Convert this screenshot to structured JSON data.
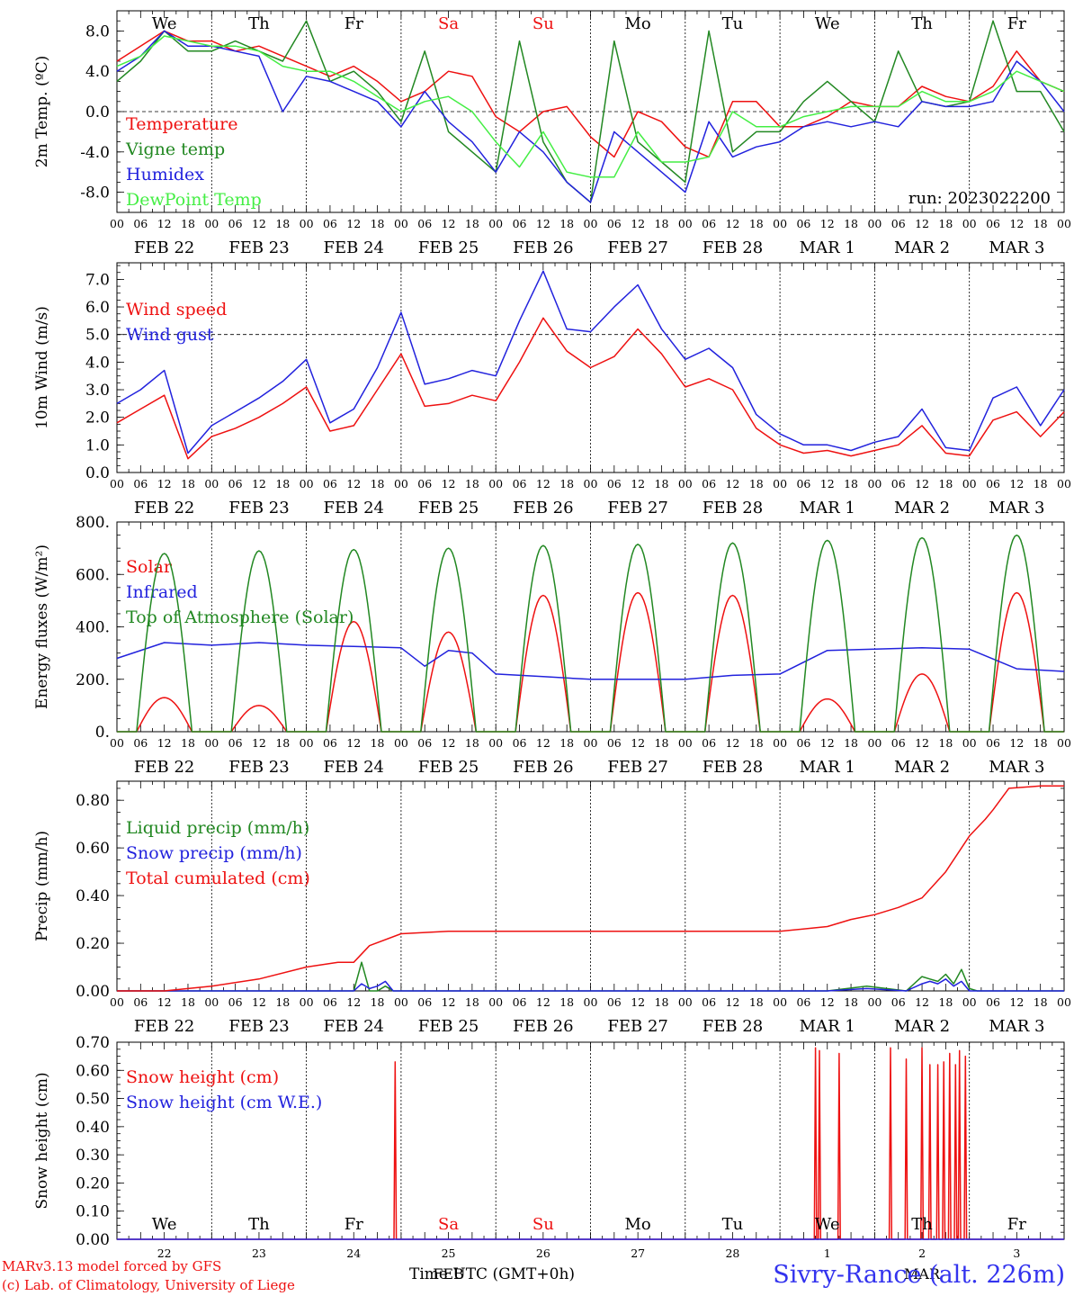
{
  "day_names": [
    "We",
    "Th",
    "Fr",
    "Sa",
    "Su",
    "Mo",
    "Tu",
    "We",
    "Th",
    "Fr"
  ],
  "weekend_color": "#ee1111",
  "date_labels": [
    "FEB 22",
    "FEB 23",
    "FEB 24",
    "FEB 25",
    "FEB 26",
    "FEB 27",
    "FEB 28",
    "MAR  1",
    "MAR  2",
    "MAR  3"
  ],
  "hour_ticks": [
    "00",
    "06",
    "12",
    "18"
  ],
  "last_hour_tick": "00",
  "chart_data": [
    {
      "type": "line",
      "ylabel": "2m Temp. (ºC)",
      "ylim": [
        -10,
        10
      ],
      "ytick_values": [
        8,
        4,
        0,
        -4,
        -8
      ],
      "ytick_labels": [
        "8.0",
        "4.0",
        "0.0",
        "-4.0",
        "-8.0"
      ],
      "ref_line": 0,
      "x_unit": "hours since FEB 22 00 UTC",
      "annotation": "run: 2023022200",
      "series": [
        {
          "name": "Temperature",
          "color": "#ee1111",
          "x": [
            0,
            6,
            12,
            18,
            24,
            30,
            36,
            42,
            48,
            54,
            60,
            66,
            72,
            78,
            84,
            90,
            96,
            102,
            108,
            114,
            120,
            126,
            132,
            138,
            144,
            150,
            156,
            162,
            168,
            174,
            180,
            186,
            192,
            198,
            204,
            210,
            216,
            222,
            228,
            234,
            240
          ],
          "y": [
            5,
            6.5,
            8,
            7,
            7,
            6,
            6.5,
            5.5,
            4.5,
            3.5,
            4.5,
            3,
            1,
            2,
            4,
            3.5,
            -0.5,
            -2,
            0,
            0.5,
            -2.5,
            -4.5,
            0,
            -1,
            -3.5,
            -4.5,
            1,
            1,
            -1.5,
            -1.5,
            -0.5,
            1,
            0.5,
            0.5,
            2.5,
            1.5,
            1,
            2.5,
            6,
            3,
            2
          ]
        },
        {
          "name": "Vigne temp",
          "color": "#228822",
          "x": [
            0,
            6,
            12,
            18,
            24,
            30,
            36,
            42,
            48,
            54,
            60,
            66,
            72,
            78,
            84,
            90,
            96,
            102,
            108,
            114,
            120,
            126,
            132,
            138,
            144,
            150,
            156,
            162,
            168,
            174,
            180,
            186,
            192,
            198,
            204,
            210,
            216,
            222,
            228,
            234,
            240
          ],
          "y": [
            3,
            5,
            8,
            6,
            6,
            7,
            6,
            5,
            9,
            3,
            4,
            2,
            -1,
            6,
            -2,
            -4,
            -6,
            7,
            -3,
            -7,
            -9,
            7,
            -3,
            -5,
            -7,
            8,
            -4,
            -2,
            -2,
            1,
            3,
            1,
            -1,
            6,
            1,
            0.5,
            1,
            9,
            2,
            2,
            -2
          ]
        },
        {
          "name": "Humidex",
          "color": "#2222dd",
          "x": [
            0,
            6,
            12,
            18,
            24,
            30,
            36,
            42,
            48,
            54,
            60,
            66,
            72,
            78,
            84,
            90,
            96,
            102,
            108,
            114,
            120,
            126,
            132,
            138,
            144,
            150,
            156,
            162,
            168,
            174,
            180,
            186,
            192,
            198,
            204,
            210,
            216,
            222,
            228,
            234,
            240
          ],
          "y": [
            4,
            5.5,
            8,
            6.5,
            6.5,
            6,
            5.5,
            0,
            3.5,
            3,
            2,
            1,
            -1.5,
            2,
            -1,
            -3,
            -6,
            -2,
            -4,
            -7,
            -9,
            -2,
            -4,
            -6,
            -8,
            -1,
            -4.5,
            -3.5,
            -3,
            -1.5,
            -1,
            -1.5,
            -1,
            -1.5,
            1,
            0.5,
            0.5,
            1,
            5,
            3,
            0
          ]
        },
        {
          "name": "DewPoint Temp",
          "color": "#44ee44",
          "x": [
            0,
            6,
            12,
            18,
            24,
            30,
            36,
            42,
            48,
            54,
            60,
            66,
            72,
            78,
            84,
            90,
            96,
            102,
            108,
            114,
            120,
            126,
            132,
            138,
            144,
            150,
            156,
            162,
            168,
            174,
            180,
            186,
            192,
            198,
            204,
            210,
            216,
            222,
            228,
            234,
            240
          ],
          "y": [
            4.5,
            5.5,
            7.5,
            7,
            6.5,
            6.5,
            6,
            4.5,
            4,
            4,
            3,
            1.5,
            0,
            1,
            1.5,
            0,
            -3,
            -5.5,
            -2,
            -6,
            -6.5,
            -6.5,
            -2,
            -5,
            -5,
            -4.5,
            0,
            -1.5,
            -1.5,
            -0.5,
            0,
            0.5,
            0.5,
            0.5,
            2,
            1,
            1,
            2,
            4,
            3,
            2
          ]
        }
      ]
    },
    {
      "type": "line",
      "ylabel": "10m Wind (m/s)",
      "ylim": [
        0,
        7.6
      ],
      "ytick_values": [
        7,
        6,
        5,
        4,
        3,
        2,
        1,
        0
      ],
      "ytick_labels": [
        "7.0",
        "6.0",
        "5.0",
        "4.0",
        "3.0",
        "2.0",
        "1.0",
        "0.0"
      ],
      "ref_line": 5,
      "x_unit": "hours since FEB 22 00 UTC",
      "series": [
        {
          "name": "Wind speed",
          "color": "#ee1111",
          "x": [
            0,
            6,
            12,
            18,
            24,
            30,
            36,
            42,
            48,
            54,
            60,
            66,
            72,
            78,
            84,
            90,
            96,
            102,
            108,
            114,
            120,
            126,
            132,
            138,
            144,
            150,
            156,
            162,
            168,
            174,
            180,
            186,
            192,
            198,
            204,
            210,
            216,
            222,
            228,
            234,
            240
          ],
          "y": [
            1.8,
            2.3,
            2.8,
            0.5,
            1.3,
            1.6,
            2,
            2.5,
            3.1,
            1.5,
            1.7,
            3,
            4.3,
            2.4,
            2.5,
            2.8,
            2.6,
            4,
            5.6,
            4.4,
            3.8,
            4.2,
            5.2,
            4.3,
            3.1,
            3.4,
            3,
            1.6,
            1,
            0.7,
            0.8,
            0.6,
            0.8,
            1,
            1.7,
            0.7,
            0.6,
            1.9,
            2.2,
            1.3,
            2.2
          ]
        },
        {
          "name": "Wind gust",
          "color": "#2222dd",
          "x": [
            0,
            6,
            12,
            18,
            24,
            30,
            36,
            42,
            48,
            54,
            60,
            66,
            72,
            78,
            84,
            90,
            96,
            102,
            108,
            114,
            120,
            126,
            132,
            138,
            144,
            150,
            156,
            162,
            168,
            174,
            180,
            186,
            192,
            198,
            204,
            210,
            216,
            222,
            228,
            234,
            240
          ],
          "y": [
            2.5,
            3,
            3.7,
            0.7,
            1.7,
            2.2,
            2.7,
            3.3,
            4.1,
            1.8,
            2.3,
            3.8,
            5.8,
            3.2,
            3.4,
            3.7,
            3.5,
            5.5,
            7.3,
            5.2,
            5.1,
            6,
            6.8,
            5.2,
            4.1,
            4.5,
            3.8,
            2.1,
            1.4,
            1,
            1,
            0.8,
            1.1,
            1.3,
            2.3,
            0.9,
            0.8,
            2.7,
            3.1,
            1.7,
            3
          ]
        }
      ]
    },
    {
      "type": "line",
      "ylabel": "Energy fluxes (W/m²)",
      "ylim": [
        0,
        800
      ],
      "ytick_values": [
        800,
        600,
        400,
        200,
        0
      ],
      "ytick_labels": [
        "800.",
        "600.",
        "400.",
        "200.",
        "0."
      ],
      "x_unit": "hours since FEB 22 00 UTC",
      "series": [
        {
          "name": "Solar",
          "color": "#ee1111",
          "x_unit": "day index",
          "noon_peaks": [
            130,
            100,
            420,
            380,
            520,
            530,
            520,
            125,
            220,
            530
          ]
        },
        {
          "name": "Infrared",
          "color": "#2222dd",
          "x": [
            0,
            12,
            24,
            36,
            48,
            60,
            72,
            78,
            84,
            90,
            96,
            108,
            120,
            132,
            144,
            156,
            168,
            180,
            192,
            204,
            216,
            228,
            240
          ],
          "y": [
            280,
            340,
            330,
            340,
            330,
            325,
            320,
            250,
            310,
            300,
            220,
            210,
            200,
            200,
            200,
            215,
            220,
            310,
            315,
            320,
            315,
            240,
            230
          ]
        },
        {
          "name": "Top of Atmosphere (Solar)",
          "color": "#228822",
          "x_unit": "day index",
          "noon_peaks": [
            680,
            690,
            695,
            700,
            710,
            715,
            720,
            730,
            740,
            750
          ]
        }
      ]
    },
    {
      "type": "line",
      "ylabel": "Precip (mm/h)",
      "ylim": [
        0,
        0.88
      ],
      "ytick_values": [
        0.8,
        0.6,
        0.4,
        0.2,
        0
      ],
      "ytick_labels": [
        "0.80",
        "0.60",
        "0.40",
        "0.20",
        "0.00"
      ],
      "x_unit": "hours since FEB 22 00 UTC",
      "series": [
        {
          "name": "Liquid precip (mm/h)",
          "color": "#228822",
          "x": [
            0,
            60,
            62,
            64,
            66,
            68,
            70,
            90,
            180,
            190,
            200,
            204,
            206,
            208,
            210,
            212,
            214,
            216,
            218,
            240
          ],
          "y": [
            0,
            0,
            0.12,
            0,
            0,
            0.02,
            0,
            0,
            0,
            0.02,
            0,
            0.06,
            0.05,
            0.04,
            0.07,
            0.03,
            0.09,
            0.01,
            0,
            0
          ]
        },
        {
          "name": "Snow precip (mm/h)",
          "color": "#2222dd",
          "x": [
            0,
            60,
            62,
            64,
            66,
            68,
            70,
            90,
            180,
            190,
            200,
            204,
            206,
            208,
            210,
            212,
            214,
            216,
            218,
            240
          ],
          "y": [
            0,
            0,
            0.03,
            0.01,
            0.02,
            0.04,
            0,
            0,
            0,
            0.01,
            0,
            0.03,
            0.04,
            0.03,
            0.05,
            0.02,
            0.04,
            0,
            0,
            0
          ]
        },
        {
          "name": "Total cumulated (cm)",
          "color": "#ee1111",
          "x": [
            0,
            12,
            24,
            36,
            48,
            56,
            60,
            64,
            72,
            84,
            96,
            120,
            144,
            168,
            180,
            186,
            192,
            198,
            204,
            210,
            216,
            220,
            222,
            226,
            234,
            240
          ],
          "y": [
            0,
            0,
            0.02,
            0.05,
            0.1,
            0.12,
            0.12,
            0.19,
            0.24,
            0.25,
            0.25,
            0.25,
            0.25,
            0.25,
            0.27,
            0.3,
            0.32,
            0.35,
            0.39,
            0.5,
            0.65,
            0.72,
            0.76,
            0.85,
            0.86,
            0.86
          ]
        }
      ]
    },
    {
      "type": "line",
      "ylabel": "Snow height (cm)",
      "ylim": [
        0,
        0.7
      ],
      "ytick_values": [
        0.7,
        0.6,
        0.5,
        0.4,
        0.3,
        0.2,
        0.1,
        0
      ],
      "ytick_labels": [
        "0.70",
        "0.60",
        "0.50",
        "0.40",
        "0.30",
        "0.20",
        "0.10",
        "0.00"
      ],
      "x_unit": "hours since FEB 22 00 UTC",
      "series": [
        {
          "name": "Snow height (cm)",
          "color": "#ee1111",
          "spikes_x": [
            70.5,
            177,
            178,
            183,
            196,
            200,
            204,
            206,
            208,
            209.5,
            211,
            212.5,
            213.5,
            215
          ],
          "spikes_y": [
            0.63,
            0.68,
            0.67,
            0.66,
            0.68,
            0.64,
            0.68,
            0.62,
            0.62,
            0.63,
            0.66,
            0.62,
            0.67,
            0.65
          ]
        },
        {
          "name": "Snow height (cm W.E.)",
          "color": "#2222dd",
          "spikes_x": [],
          "spikes_y": []
        }
      ],
      "day_names_bottom": [
        "We",
        "Th",
        "Fr",
        "Sa",
        "Su",
        "Mo",
        "Tu",
        "We",
        "Th",
        "Fr"
      ],
      "day_numbers": [
        "22",
        "23",
        "24",
        "25",
        "26",
        "27",
        "28",
        "1",
        "2",
        "3"
      ],
      "month_labels": [
        "FEB",
        "MAR"
      ]
    }
  ],
  "footer": {
    "model": "MARv3.13 model forced by GFS",
    "lab": "(c) Lab. of Climatology, University of Liege",
    "time_label": "Time UTC (GMT+0h)",
    "station": "Sivry-Rance (alt. 226m)"
  }
}
